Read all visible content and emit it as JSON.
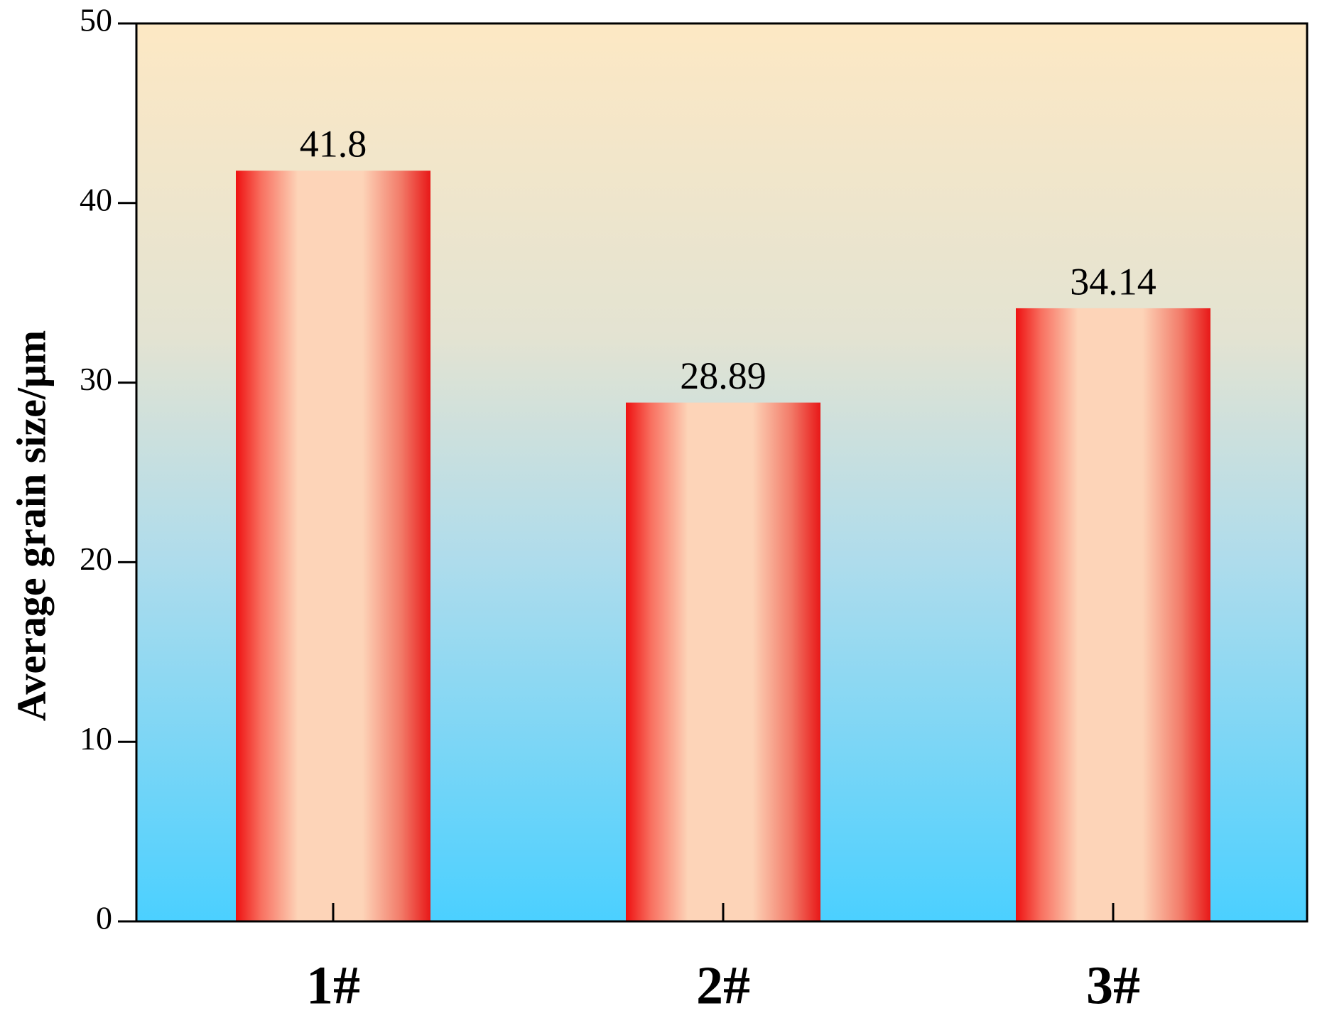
{
  "chart_data": {
    "type": "bar",
    "y_label": "Average grain size/μm",
    "categories": [
      "1#",
      "2#",
      "3#"
    ],
    "values": [
      41.8,
      28.89,
      34.14
    ],
    "ylim": [
      0,
      50
    ],
    "yticks": [
      0,
      10,
      20,
      30,
      40,
      50
    ]
  }
}
